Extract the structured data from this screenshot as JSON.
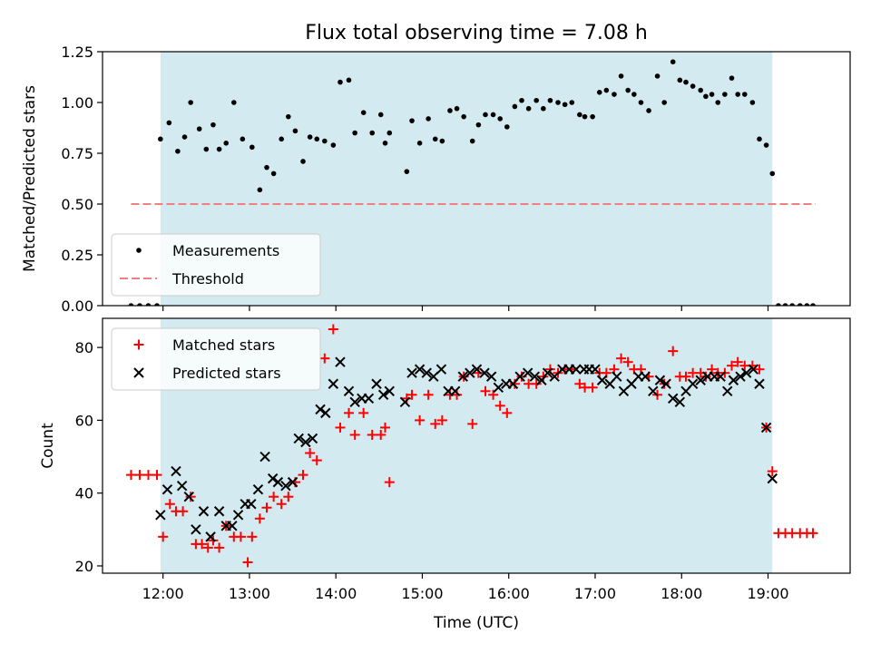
{
  "figure": {
    "title": "Flux total observing time = 7.08 h",
    "xlabel": "Time (UTC)",
    "xticks": [
      "12:00",
      "13:00",
      "14:00",
      "15:00",
      "16:00",
      "17:00",
      "18:00",
      "19:00"
    ]
  },
  "chart_data": [
    {
      "type": "scatter",
      "ylabel": "Matched/Predicted stars",
      "ylim": [
        0,
        1.25
      ],
      "yticks": [
        "0.00",
        "0.25",
        "0.50",
        "0.75",
        "1.00",
        "1.25"
      ],
      "xlim_hours": [
        11.3,
        19.95
      ],
      "shaded_span_hours": [
        11.97,
        19.05
      ],
      "shade_color": "#d3eaf1",
      "legend_position": "lower-left",
      "series": [
        {
          "name": "Measurements",
          "marker": "dot",
          "color": "#000000",
          "x_hours": [
            11.63,
            11.73,
            11.83,
            11.93,
            11.97,
            12.07,
            12.17,
            12.25,
            12.32,
            12.42,
            12.5,
            12.58,
            12.65,
            12.73,
            12.82,
            12.92,
            13.03,
            13.12,
            13.2,
            13.28,
            13.37,
            13.45,
            13.53,
            13.62,
            13.7,
            13.78,
            13.87,
            13.97,
            14.05,
            14.15,
            14.22,
            14.32,
            14.42,
            14.52,
            14.57,
            14.62,
            14.82,
            14.88,
            14.97,
            15.07,
            15.15,
            15.23,
            15.32,
            15.4,
            15.48,
            15.58,
            15.65,
            15.73,
            15.82,
            15.9,
            15.98,
            16.07,
            16.15,
            16.23,
            16.32,
            16.4,
            16.48,
            16.57,
            16.65,
            16.73,
            16.82,
            16.88,
            16.97,
            17.05,
            17.13,
            17.22,
            17.3,
            17.38,
            17.45,
            17.53,
            17.62,
            17.72,
            17.8,
            17.9,
            17.98,
            18.05,
            18.13,
            18.22,
            18.28,
            18.35,
            18.42,
            18.5,
            18.58,
            18.65,
            18.73,
            18.82,
            18.9,
            18.98,
            19.05,
            19.12,
            19.2,
            19.28,
            19.37,
            19.45,
            19.52
          ],
          "y": [
            0,
            0,
            0,
            0,
            0.82,
            0.9,
            0.76,
            0.83,
            1.0,
            0.87,
            0.77,
            0.89,
            0.77,
            0.8,
            1.0,
            0.82,
            0.78,
            0.57,
            0.68,
            0.65,
            0.82,
            0.93,
            0.86,
            0.71,
            0.83,
            0.82,
            0.81,
            0.79,
            1.1,
            1.11,
            0.85,
            0.95,
            0.85,
            0.94,
            0.8,
            0.85,
            0.66,
            0.91,
            0.8,
            0.92,
            0.82,
            0.81,
            0.96,
            0.97,
            0.93,
            0.81,
            0.89,
            0.94,
            0.94,
            0.92,
            0.88,
            0.98,
            1.01,
            0.97,
            1.01,
            0.97,
            1.01,
            1.0,
            0.99,
            1.0,
            0.94,
            0.93,
            0.93,
            1.05,
            1.06,
            1.04,
            1.13,
            1.06,
            1.04,
            1.0,
            0.96,
            1.13,
            1.0,
            1.2,
            1.11,
            1.1,
            1.08,
            1.06,
            1.03,
            1.04,
            1.0,
            1.04,
            1.12,
            1.04,
            1.04,
            1.0,
            0.82,
            0.79,
            0.65,
            0,
            0,
            0,
            0,
            0,
            0
          ]
        },
        {
          "name": "Threshold",
          "marker": "dashed-line",
          "color": "#f08080",
          "x_hours": [
            11.63,
            19.55
          ],
          "y": [
            0.5,
            0.5
          ]
        }
      ]
    },
    {
      "type": "scatter",
      "ylabel": "Count",
      "ylim": [
        18,
        88
      ],
      "yticks": [
        "20",
        "40",
        "60",
        "80"
      ],
      "xlim_hours": [
        11.3,
        19.95
      ],
      "shaded_span_hours": [
        11.97,
        19.05
      ],
      "shade_color": "#d3eaf1",
      "legend_position": "upper-left",
      "series": [
        {
          "name": "Matched stars",
          "marker": "plus",
          "color": "#ff0000",
          "x_hours": [
            11.63,
            11.73,
            11.83,
            11.93,
            12.0,
            12.08,
            12.15,
            12.23,
            12.32,
            12.38,
            12.45,
            12.52,
            12.58,
            12.65,
            12.73,
            12.82,
            12.9,
            12.98,
            13.03,
            13.12,
            13.2,
            13.28,
            13.37,
            13.45,
            13.53,
            13.62,
            13.7,
            13.78,
            13.87,
            13.97,
            14.05,
            14.15,
            14.22,
            14.32,
            14.42,
            14.52,
            14.57,
            14.62,
            14.82,
            14.88,
            14.97,
            15.07,
            15.15,
            15.23,
            15.32,
            15.4,
            15.48,
            15.58,
            15.65,
            15.73,
            15.82,
            15.9,
            15.98,
            16.07,
            16.15,
            16.23,
            16.32,
            16.4,
            16.48,
            16.57,
            16.65,
            16.73,
            16.82,
            16.88,
            16.97,
            17.05,
            17.13,
            17.22,
            17.3,
            17.38,
            17.45,
            17.53,
            17.62,
            17.72,
            17.8,
            17.9,
            17.98,
            18.05,
            18.13,
            18.22,
            18.28,
            18.35,
            18.42,
            18.5,
            18.58,
            18.65,
            18.73,
            18.82,
            18.9,
            18.98,
            19.05,
            19.12,
            19.2,
            19.28,
            19.37,
            19.45,
            19.52
          ],
          "y": [
            45,
            45,
            45,
            45,
            28,
            37,
            35,
            35,
            39,
            26,
            26,
            25,
            27,
            25,
            31,
            28,
            28,
            21,
            28,
            33,
            36,
            39,
            37,
            39,
            43,
            45,
            51,
            49,
            77,
            85,
            58,
            62,
            56,
            62,
            56,
            56,
            58,
            43,
            66,
            67,
            60,
            67,
            59,
            60,
            67,
            67,
            72,
            59,
            73,
            68,
            67,
            64,
            62,
            70,
            72,
            70,
            70,
            72,
            74,
            73,
            74,
            74,
            70,
            69,
            69,
            73,
            73,
            74,
            77,
            76,
            74,
            74,
            72,
            67,
            70,
            79,
            72,
            72,
            73,
            73,
            72,
            74,
            73,
            73,
            75,
            76,
            75,
            75,
            74,
            58,
            46,
            29,
            29,
            29,
            29,
            29,
            29
          ]
        },
        {
          "name": "Predicted stars",
          "marker": "x",
          "color": "#000000",
          "x_hours": [
            11.97,
            12.05,
            12.15,
            12.22,
            12.3,
            12.38,
            12.47,
            12.55,
            12.65,
            12.73,
            12.8,
            12.87,
            12.95,
            13.02,
            13.1,
            13.18,
            13.27,
            13.33,
            13.42,
            13.5,
            13.57,
            13.65,
            13.73,
            13.82,
            13.88,
            13.97,
            14.05,
            14.15,
            14.22,
            14.3,
            14.38,
            14.47,
            14.55,
            14.62,
            14.8,
            14.88,
            14.97,
            15.05,
            15.13,
            15.22,
            15.3,
            15.38,
            15.47,
            15.55,
            15.63,
            15.72,
            15.8,
            15.88,
            15.97,
            16.05,
            16.13,
            16.22,
            16.3,
            16.38,
            16.45,
            16.53,
            16.62,
            16.7,
            16.78,
            16.87,
            16.93,
            17.0,
            17.08,
            17.17,
            17.25,
            17.33,
            17.42,
            17.5,
            17.58,
            17.67,
            17.75,
            17.82,
            17.9,
            17.98,
            18.05,
            18.13,
            18.22,
            18.3,
            18.38,
            18.45,
            18.53,
            18.6,
            18.68,
            18.75,
            18.83,
            18.9,
            18.98,
            19.05
          ],
          "y": [
            34,
            41,
            46,
            42,
            39,
            30,
            35,
            28,
            35,
            31,
            31,
            34,
            37,
            37,
            41,
            50,
            44,
            43,
            42,
            43,
            55,
            54,
            55,
            63,
            62,
            70,
            76,
            68,
            65,
            66,
            66,
            70,
            67,
            68,
            65,
            73,
            74,
            73,
            72,
            74,
            68,
            68,
            72,
            73,
            74,
            73,
            72,
            69,
            70,
            70,
            72,
            73,
            72,
            71,
            73,
            72,
            74,
            74,
            74,
            74,
            74,
            74,
            71,
            70,
            72,
            68,
            70,
            72,
            72,
            68,
            71,
            70,
            66,
            65,
            68,
            70,
            71,
            72,
            72,
            72,
            68,
            71,
            72,
            73,
            74,
            70,
            58,
            44
          ]
        }
      ]
    }
  ]
}
